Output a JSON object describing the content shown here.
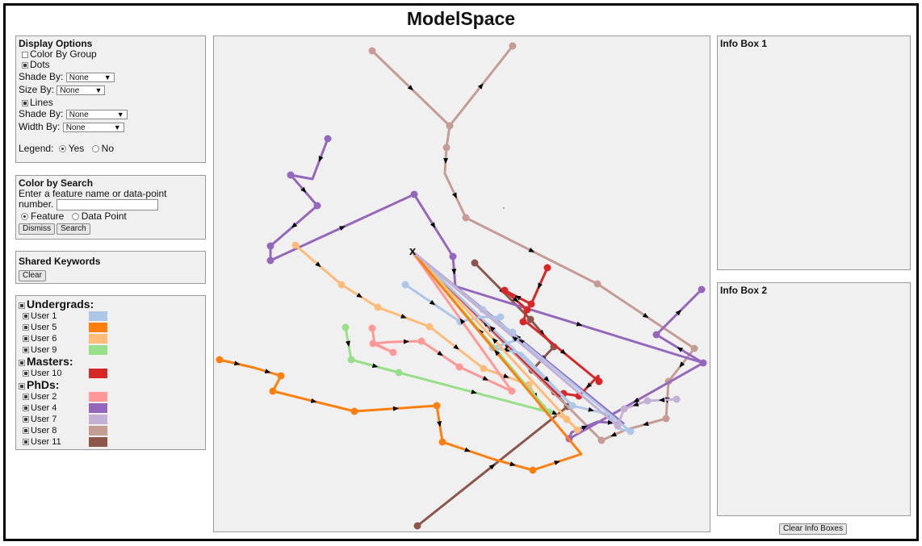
{
  "app": {
    "title": "ModelSpace"
  },
  "display_options": {
    "title": "Display Options",
    "color_by_group_label": "Color By Group",
    "color_by_group_checked": false,
    "dots_label": "Dots",
    "dots_checked": true,
    "dots_shade_by_label": "Shade By:",
    "dots_shade_by_value": "None",
    "size_by_label": "Size By:",
    "size_by_value": "None",
    "lines_label": "Lines",
    "lines_checked": true,
    "lines_shade_by_label": "Shade By:",
    "lines_shade_by_value": "None",
    "width_by_label": "Width By:",
    "width_by_value": "None",
    "legend_label": "Legend:",
    "legend_yes": "Yes",
    "legend_no": "No",
    "legend_selected": "Yes"
  },
  "color_by_search": {
    "title": "Color by Search",
    "prompt_line1": "Enter a feature name or data-point",
    "prompt_line2": "number.",
    "input_value": "",
    "option_feature": "Feature",
    "option_data_point": "Data Point",
    "selected": "Feature",
    "dismiss_button": "Dismiss",
    "search_button": "Search"
  },
  "shared_keywords": {
    "title": "Shared Keywords",
    "clear_button": "Clear"
  },
  "legend": {
    "groups": [
      {
        "name": "Undergrads:",
        "users": [
          {
            "label": "User 1",
            "color": "#aec7e8"
          },
          {
            "label": "User 5",
            "color": "#ff7f0e"
          },
          {
            "label": "User 6",
            "color": "#ffbb78"
          },
          {
            "label": "User 9",
            "color": "#98df8a"
          }
        ]
      },
      {
        "name": "Masters:",
        "users": [
          {
            "label": "User 10",
            "color": "#d62728"
          }
        ]
      },
      {
        "name": "PhDs:",
        "users": [
          {
            "label": "User 2",
            "color": "#ff9896"
          },
          {
            "label": "User 4",
            "color": "#9467bd"
          },
          {
            "label": "User 7",
            "color": "#c5b0d5"
          },
          {
            "label": "User 8",
            "color": "#c49c94"
          },
          {
            "label": "User 11",
            "color": "#8c564b"
          }
        ]
      }
    ]
  },
  "info_box_1": {
    "title": "Info Box 1"
  },
  "info_box_2": {
    "title": "Info Box 2"
  },
  "clear_info_button": "Clear Info Boxes",
  "plot": {
    "end_marker": "x",
    "colors": {
      "background": "#f0f0f0",
      "arrow": "#000000"
    }
  }
}
